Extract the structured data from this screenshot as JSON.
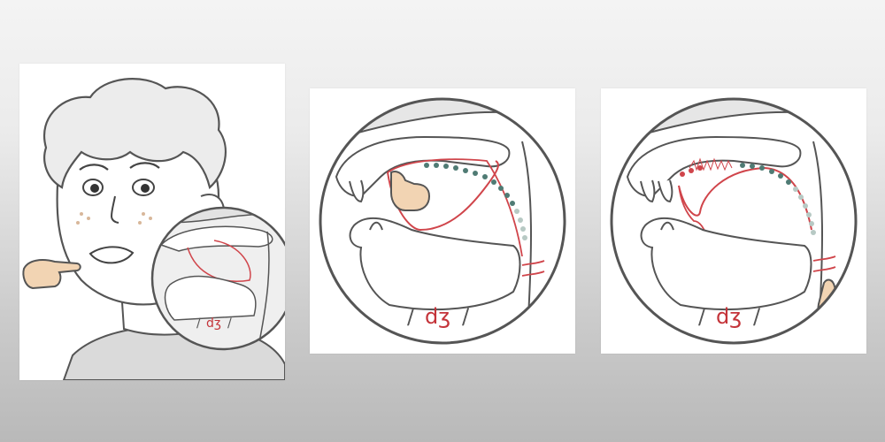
{
  "panels": [
    {
      "id": "face-view",
      "phoneme_label": "dʒ"
    },
    {
      "id": "tongue-contact",
      "phoneme_label": "dʒ"
    },
    {
      "id": "tongue-release",
      "phoneme_label": "dʒ"
    }
  ],
  "slash": "/",
  "colors": {
    "outline": "#555555",
    "tongue_line": "#d0454b",
    "label_red": "#c4343a",
    "dots_green": "#4f7b74",
    "dots_light": "#b7c9c4",
    "skin": "#f2d4b3",
    "shadow_gray": "#d9d9d9"
  },
  "icons": [
    "pointing-hand-icon",
    "touch-hand-icon"
  ]
}
